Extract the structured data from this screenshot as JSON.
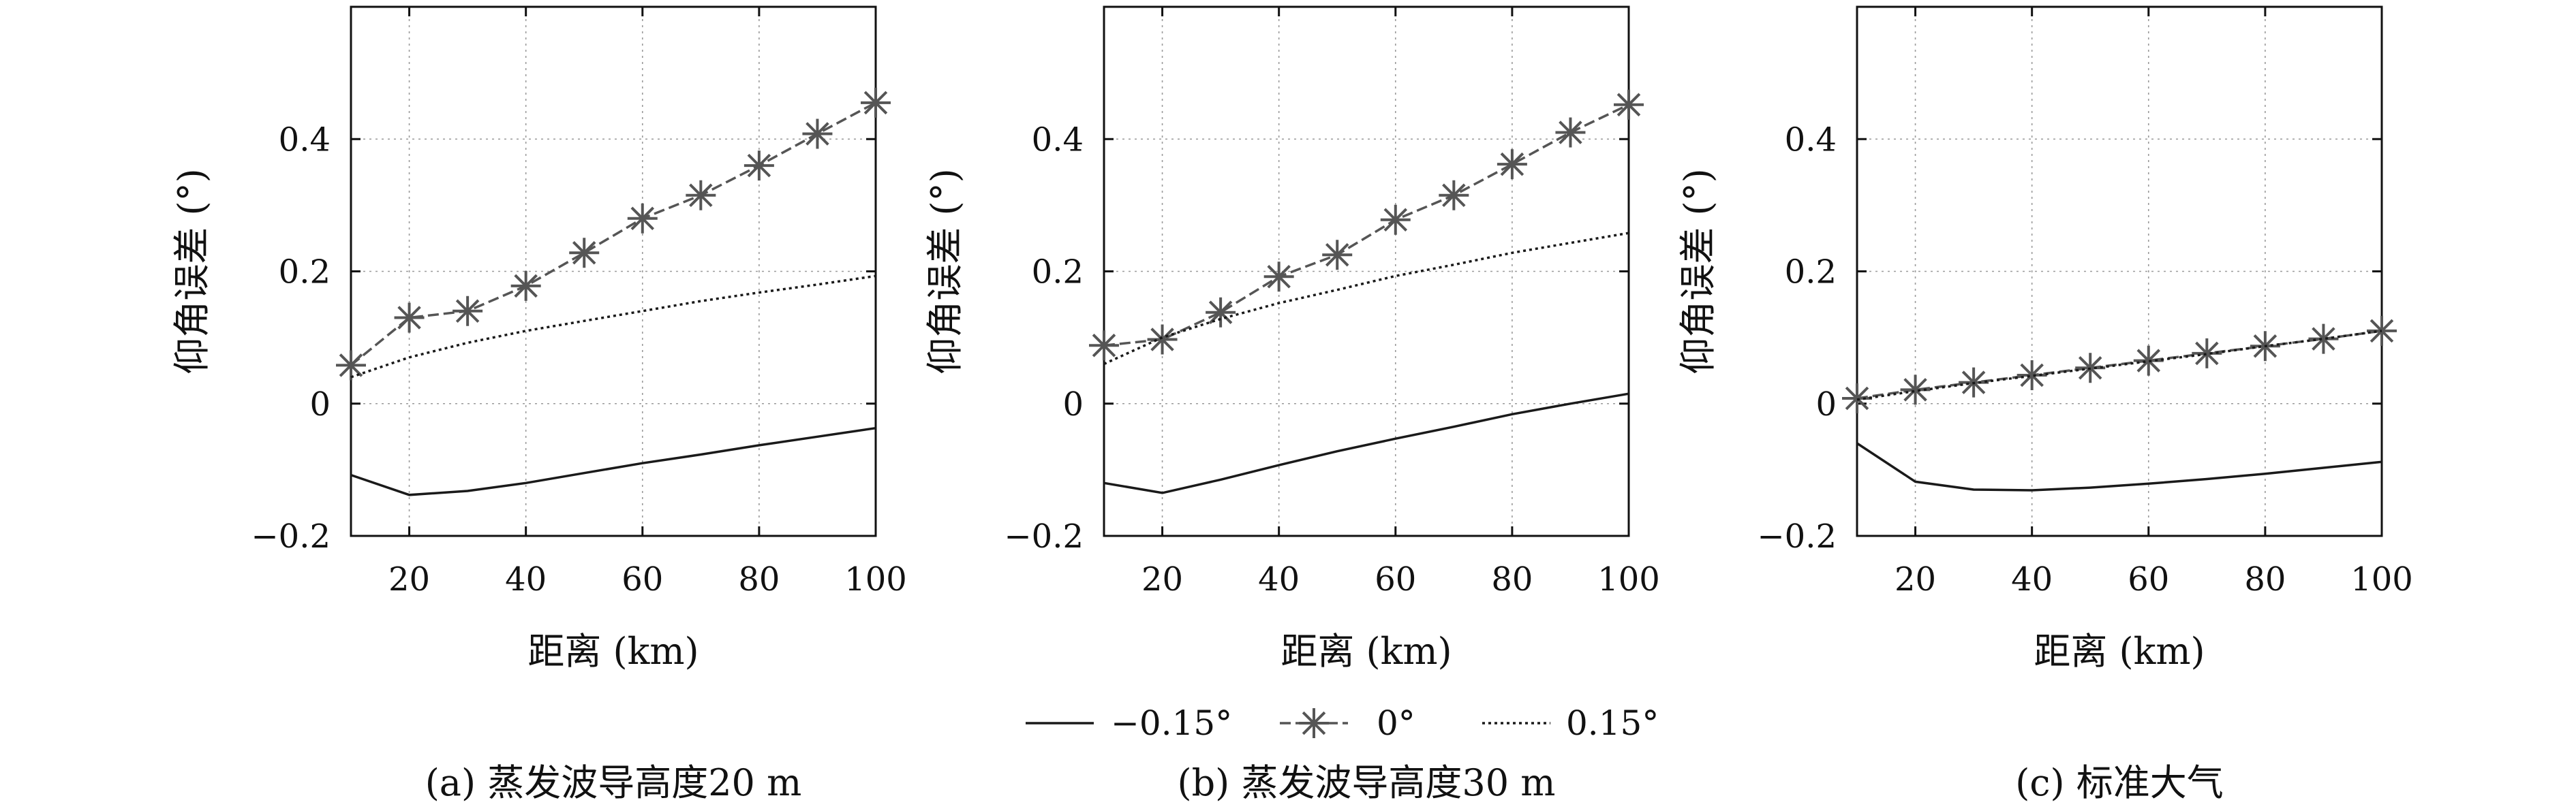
{
  "legend": {
    "items": [
      {
        "label": "−0.15°",
        "style": "solid",
        "marker": "none",
        "color": "#1a1a1a"
      },
      {
        "label": "0°",
        "style": "dashed",
        "marker": "asterisk",
        "color": "#555555"
      },
      {
        "label": "0.15°",
        "style": "dotted",
        "marker": "none",
        "color": "#1a1a1a"
      }
    ]
  },
  "chart_data": [
    {
      "type": "line",
      "caption": "(a) 蒸发波导高度20 m",
      "xlabel": "距离 (km)",
      "ylabel": "仰角误差 (°)",
      "xlim": [
        10,
        100
      ],
      "ylim": [
        -0.2,
        0.6
      ],
      "xticks": [
        20,
        40,
        60,
        80,
        100
      ],
      "yticks": [
        -0.2,
        0,
        0.2,
        0.4
      ],
      "ytick_labels": [
        "−0.2",
        "0",
        "0.2",
        "0.4"
      ],
      "grid": true,
      "x": [
        10,
        20,
        30,
        40,
        50,
        60,
        70,
        80,
        90,
        100
      ],
      "series": [
        {
          "name": "−0.15°",
          "values": [
            -0.108,
            -0.138,
            -0.132,
            -0.12,
            -0.105,
            -0.09,
            -0.077,
            -0.063,
            -0.05,
            -0.037
          ]
        },
        {
          "name": "0°",
          "values": [
            0.058,
            0.13,
            0.14,
            0.178,
            0.228,
            0.28,
            0.315,
            0.36,
            0.408,
            0.455
          ]
        },
        {
          "name": "0.15°",
          "values": [
            0.04,
            0.07,
            0.092,
            0.11,
            0.125,
            0.14,
            0.155,
            0.168,
            0.18,
            0.193
          ]
        }
      ]
    },
    {
      "type": "line",
      "caption": "(b) 蒸发波导高度30 m",
      "xlabel": "距离 (km)",
      "ylabel": "仰角误差 (°)",
      "xlim": [
        10,
        100
      ],
      "ylim": [
        -0.2,
        0.6
      ],
      "xticks": [
        20,
        40,
        60,
        80,
        100
      ],
      "yticks": [
        -0.2,
        0,
        0.2,
        0.4
      ],
      "ytick_labels": [
        "−0.2",
        "0",
        "0.2",
        "0.4"
      ],
      "grid": true,
      "x": [
        10,
        20,
        30,
        40,
        50,
        60,
        70,
        80,
        90,
        100
      ],
      "series": [
        {
          "name": "−0.15°",
          "values": [
            -0.12,
            -0.135,
            -0.115,
            -0.093,
            -0.072,
            -0.053,
            -0.035,
            -0.016,
            0.0,
            0.015
          ]
        },
        {
          "name": "0°",
          "values": [
            0.088,
            0.097,
            0.138,
            0.192,
            0.225,
            0.278,
            0.315,
            0.362,
            0.41,
            0.452
          ]
        },
        {
          "name": "0.15°",
          "values": [
            0.06,
            0.1,
            0.128,
            0.152,
            0.172,
            0.193,
            0.21,
            0.228,
            0.243,
            0.258
          ]
        }
      ]
    },
    {
      "type": "line",
      "caption": "(c) 标准大气",
      "xlabel": "距离 (km)",
      "ylabel": "仰角误差 (°)",
      "xlim": [
        10,
        100
      ],
      "ylim": [
        -0.2,
        0.6
      ],
      "xticks": [
        20,
        40,
        60,
        80,
        100
      ],
      "yticks": [
        -0.2,
        0,
        0.2,
        0.4
      ],
      "ytick_labels": [
        "−0.2",
        "0",
        "0.2",
        "0.4"
      ],
      "grid": true,
      "x": [
        10,
        20,
        30,
        40,
        50,
        60,
        70,
        80,
        90,
        100
      ],
      "series": [
        {
          "name": "−0.15°",
          "values": [
            -0.06,
            -0.118,
            -0.13,
            -0.131,
            -0.127,
            -0.121,
            -0.114,
            -0.106,
            -0.097,
            -0.088
          ]
        },
        {
          "name": "0°",
          "values": [
            0.008,
            0.021,
            0.032,
            0.043,
            0.054,
            0.065,
            0.076,
            0.087,
            0.098,
            0.11
          ]
        },
        {
          "name": "0.15°",
          "values": [
            0.006,
            0.019,
            0.031,
            0.042,
            0.053,
            0.064,
            0.075,
            0.087,
            0.098,
            0.11
          ]
        }
      ]
    }
  ]
}
